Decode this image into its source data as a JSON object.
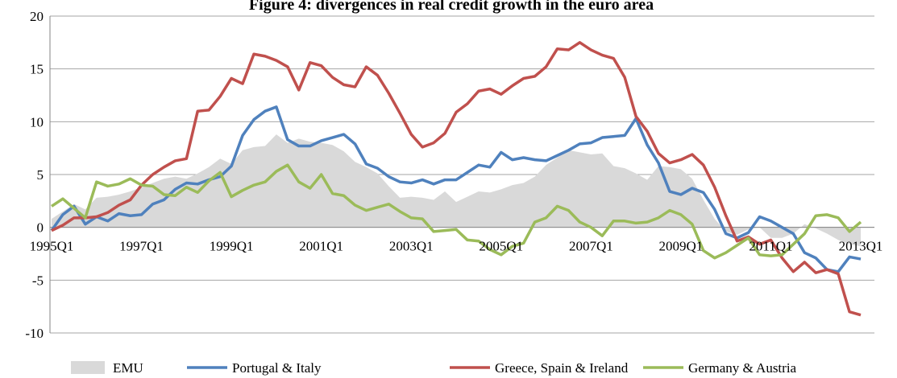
{
  "chart_data": {
    "type": "line",
    "title": "Figure 4: divergences in real credit growth in the euro area",
    "categories": [
      "1995Q1",
      null,
      null,
      null,
      null,
      null,
      null,
      null,
      "1997Q1",
      null,
      null,
      null,
      null,
      null,
      null,
      null,
      "1999Q1",
      null,
      null,
      null,
      null,
      null,
      null,
      null,
      "2001Q1",
      null,
      null,
      null,
      null,
      null,
      null,
      null,
      "2003Q1",
      null,
      null,
      null,
      null,
      null,
      null,
      null,
      "2005Q1",
      null,
      null,
      null,
      null,
      null,
      null,
      null,
      "2007Q1",
      null,
      null,
      null,
      null,
      null,
      null,
      null,
      "2009Q1",
      null,
      null,
      null,
      null,
      null,
      null,
      null,
      "2011Q1",
      null,
      null,
      null,
      null,
      null,
      null,
      null,
      "2013Q1"
    ],
    "series": [
      {
        "name": "EMU",
        "type": "area",
        "color": "#d9d9d9",
        "values": [
          0.8,
          1.5,
          2.2,
          1.7,
          2.8,
          2.9,
          3.1,
          3.4,
          3.8,
          4.2,
          4.6,
          4.8,
          4.6,
          5.1,
          5.7,
          6.5,
          6.0,
          7.3,
          7.6,
          7.7,
          8.8,
          8.0,
          8.4,
          8.1,
          8.0,
          7.8,
          7.2,
          6.2,
          5.7,
          5.1,
          3.9,
          2.8,
          2.9,
          2.8,
          2.6,
          3.4,
          2.4,
          2.9,
          3.4,
          3.3,
          3.6,
          4.0,
          4.2,
          4.8,
          5.9,
          6.6,
          7.3,
          7.1,
          6.9,
          7.0,
          5.8,
          5.6,
          5.1,
          4.5,
          5.8,
          5.7,
          5.5,
          4.6,
          2.6,
          0.8,
          -0.4,
          -0.7,
          -0.2,
          0.0,
          -1.0,
          -1.0,
          -0.6,
          0.3,
          -0.1,
          -0.6,
          -1.2,
          -1.6,
          -1.8
        ]
      },
      {
        "name": "Portugal & Italy",
        "type": "line",
        "color": "#4f81bd",
        "values": [
          -0.3,
          1.2,
          2.0,
          0.3,
          1.0,
          0.6,
          1.3,
          1.1,
          1.2,
          2.2,
          2.6,
          3.6,
          4.2,
          4.1,
          4.5,
          4.8,
          5.8,
          8.7,
          10.2,
          11.0,
          11.4,
          8.3,
          7.7,
          7.7,
          8.2,
          8.5,
          8.8,
          7.9,
          6.0,
          5.6,
          4.8,
          4.3,
          4.2,
          4.5,
          4.1,
          4.5,
          4.5,
          5.2,
          5.9,
          5.7,
          7.1,
          6.4,
          6.6,
          6.4,
          6.3,
          6.8,
          7.3,
          7.9,
          8.0,
          8.5,
          8.6,
          8.7,
          10.3,
          7.8,
          6.1,
          3.4,
          3.1,
          3.7,
          3.3,
          1.7,
          -0.6,
          -1.0,
          -0.5,
          1.0,
          0.6,
          0.0,
          -0.6,
          -2.4,
          -2.9,
          -4.0,
          -4.2,
          -2.8,
          -3.0
        ]
      },
      {
        "name": "Greece, Spain & Ireland",
        "type": "line",
        "color": "#c0504d",
        "values": [
          -0.3,
          0.2,
          0.9,
          0.9,
          1.0,
          1.4,
          2.1,
          2.6,
          4.0,
          5.0,
          5.7,
          6.3,
          6.5,
          11.0,
          11.1,
          12.4,
          14.1,
          13.6,
          16.4,
          16.2,
          15.8,
          15.2,
          13.0,
          15.6,
          15.3,
          14.2,
          13.5,
          13.3,
          15.2,
          14.4,
          12.7,
          10.8,
          8.8,
          7.6,
          8.0,
          8.9,
          10.9,
          11.7,
          12.9,
          13.1,
          12.6,
          13.4,
          14.1,
          14.3,
          15.2,
          16.9,
          16.8,
          17.5,
          16.8,
          16.3,
          16.0,
          14.2,
          10.5,
          9.1,
          7.0,
          6.1,
          6.4,
          6.9,
          5.9,
          3.8,
          1.1,
          -1.3,
          -0.9,
          -1.6,
          -1.2,
          -2.9,
          -4.2,
          -3.3,
          -4.3,
          -4.0,
          -4.4,
          -8.0,
          -8.3
        ]
      },
      {
        "name": "Germany & Austria",
        "type": "line",
        "color": "#9bbb59",
        "values": [
          2.0,
          2.7,
          1.8,
          0.9,
          4.3,
          3.9,
          4.1,
          4.6,
          4.0,
          3.9,
          3.1,
          3.0,
          3.8,
          3.3,
          4.4,
          5.2,
          2.9,
          3.5,
          4.0,
          4.3,
          5.3,
          5.9,
          4.3,
          3.7,
          5.0,
          3.2,
          3.0,
          2.1,
          1.6,
          1.9,
          2.2,
          1.5,
          0.9,
          0.8,
          -0.4,
          -0.3,
          -0.2,
          -1.2,
          -1.3,
          -2.1,
          -2.6,
          -1.8,
          -1.5,
          0.5,
          0.9,
          2.0,
          1.6,
          0.5,
          0.0,
          -0.8,
          0.6,
          0.6,
          0.4,
          0.5,
          0.9,
          1.6,
          1.2,
          0.3,
          -2.2,
          -2.9,
          -2.4,
          -1.7,
          -1.0,
          -2.6,
          -2.7,
          -2.6,
          -1.6,
          -0.6,
          1.1,
          1.2,
          0.9,
          -0.4,
          0.5
        ]
      }
    ],
    "ylim": [
      -10,
      20
    ],
    "yticks": [
      -10,
      -5,
      0,
      5,
      10,
      15,
      20
    ],
    "grid": true,
    "legend": "bottom"
  }
}
